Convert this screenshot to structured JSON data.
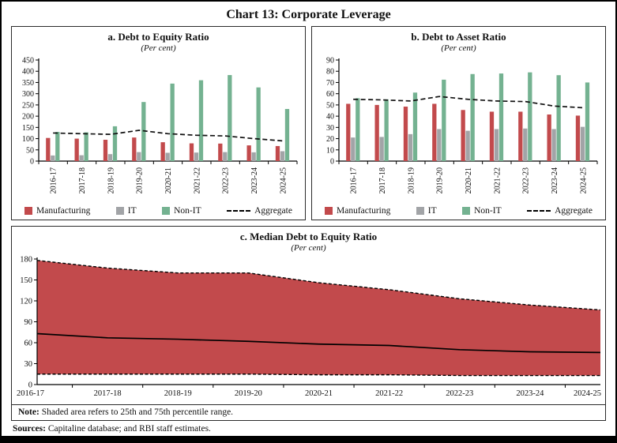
{
  "header": {
    "title": "Chart 13: Corporate Leverage"
  },
  "colors": {
    "manufacturing": "#C24A4C",
    "it": "#A2A4A7",
    "non_it": "#74B291",
    "aggregate": "#111111",
    "area_fill": "#C24A4C"
  },
  "chart_data": [
    {
      "id": "a",
      "type": "bar",
      "title": "a. Debt to Equity Ratio",
      "subtitle": "(Per cent)",
      "categories": [
        "2016-17",
        "2017-18",
        "2018-19",
        "2019-20",
        "2020-21",
        "2021-22",
        "2022-23",
        "2023-24",
        "2024-25"
      ],
      "series": [
        {
          "name": "Manufacturing",
          "color": "#C24A4C",
          "values": [
            103,
            100,
            95,
            105,
            84,
            79,
            78,
            70,
            67
          ]
        },
        {
          "name": "IT",
          "color": "#A2A4A7",
          "values": [
            25,
            26,
            31,
            40,
            37,
            38,
            40,
            39,
            44
          ]
        },
        {
          "name": "Non-IT",
          "color": "#74B291",
          "values": [
            130,
            128,
            155,
            263,
            345,
            360,
            383,
            328,
            232
          ]
        }
      ],
      "line_series": {
        "name": "Aggregate",
        "values": [
          125,
          122,
          119,
          137,
          122,
          115,
          112,
          100,
          90
        ]
      },
      "ylim": [
        0,
        450
      ],
      "ystep": 50,
      "grid": false,
      "legend_position": "bottom"
    },
    {
      "id": "b",
      "type": "bar",
      "title": "b. Debt to Asset Ratio",
      "subtitle": "(Per cent)",
      "categories": [
        "2016-17",
        "2017-18",
        "2018-19",
        "2019-20",
        "2020-21",
        "2021-22",
        "2022-23",
        "2023-24",
        "2024-25"
      ],
      "series": [
        {
          "name": "Manufacturing",
          "color": "#C24A4C",
          "values": [
            51,
            50,
            48.5,
            51,
            45.5,
            44,
            44,
            41.5,
            40.5
          ]
        },
        {
          "name": "IT",
          "color": "#A2A4A7",
          "values": [
            21,
            21.5,
            24,
            28.5,
            27,
            28.5,
            29,
            28.5,
            30.5
          ]
        },
        {
          "name": "Non-IT",
          "color": "#74B291",
          "values": [
            56,
            55,
            61,
            72.5,
            77.5,
            78,
            79,
            76.5,
            70
          ]
        }
      ],
      "line_series": {
        "name": "Aggregate",
        "values": [
          55,
          54.5,
          53.5,
          57.5,
          55,
          53.5,
          53,
          49,
          47.5
        ]
      },
      "ylim": [
        0,
        90
      ],
      "ystep": 10,
      "grid": false,
      "legend_position": "bottom"
    },
    {
      "id": "c",
      "type": "area",
      "title": "c. Median Debt to Equity Ratio",
      "subtitle": "(Per cent)",
      "categories": [
        "2016-17",
        "2017-18",
        "2018-19",
        "2019-20",
        "2020-21",
        "2021-22",
        "2022-23",
        "2023-24",
        "2024-25"
      ],
      "series": [
        {
          "name": "75th percentile",
          "style": "dashed",
          "values": [
            178,
            167,
            160,
            160,
            146,
            136,
            123,
            114,
            107
          ]
        },
        {
          "name": "Median",
          "style": "solid",
          "values": [
            73,
            67,
            65,
            62,
            58,
            56,
            50,
            47,
            46
          ]
        },
        {
          "name": "25th percentile",
          "style": "dashed",
          "values": [
            15,
            15,
            15,
            15,
            14,
            14,
            13,
            13,
            13
          ]
        }
      ],
      "ylim": [
        0,
        180
      ],
      "ystep": 30,
      "grid": false
    }
  ],
  "note": {
    "label": "Note:",
    "text": " Shaded area refers to 25th and 75th percentile range."
  },
  "sources": {
    "label": "Sources:",
    "text": " Capitaline database; and RBI staff estimates."
  }
}
